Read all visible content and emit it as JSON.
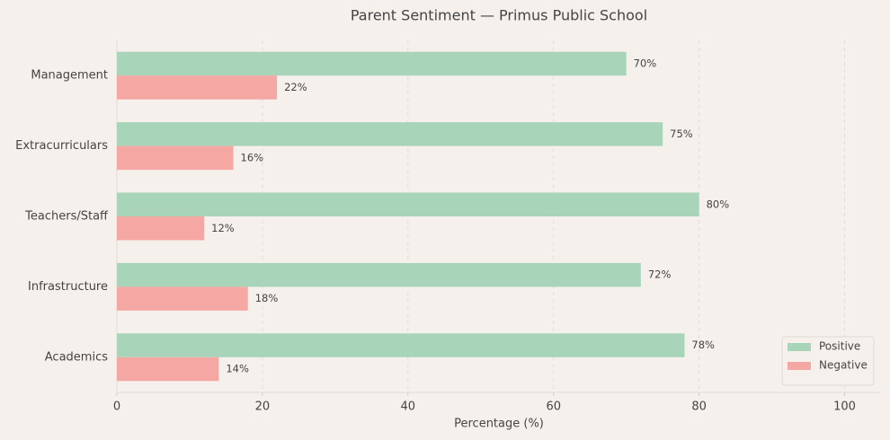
{
  "chart_data": {
    "type": "barh",
    "title": "Parent Sentiment — Primus Public School",
    "xlabel": "Percentage (%)",
    "categories": [
      "Management",
      "Extracurriculars",
      "Teachers/Staff",
      "Infrastructure",
      "Academics"
    ],
    "series": [
      {
        "name": "Positive",
        "color": "#a8d5ba",
        "values": [
          70,
          75,
          80,
          72,
          78
        ],
        "value_labels": [
          "70%",
          "75%",
          "80%",
          "72%",
          "78%"
        ]
      },
      {
        "name": "Negative",
        "color": "#f5a7a3",
        "values": [
          22,
          16,
          12,
          18,
          14
        ],
        "value_labels": [
          "22%",
          "16%",
          "12%",
          "18%",
          "14%"
        ]
      }
    ],
    "xlim": [
      0,
      105
    ],
    "xticks": [
      0,
      20,
      40,
      60,
      80,
      100
    ],
    "grid": true,
    "legend": "lower right"
  }
}
